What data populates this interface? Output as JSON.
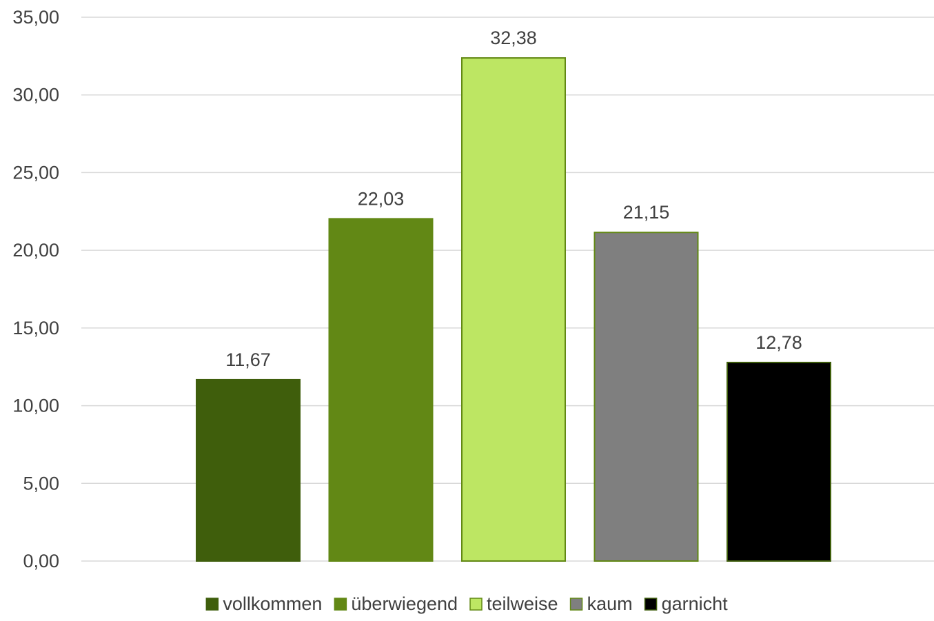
{
  "chart_data": {
    "type": "bar",
    "title": "",
    "xlabel": "",
    "ylabel": "",
    "categories": [
      "vollkommen",
      "überwiegend",
      "teilweise",
      "kaum",
      "garnicht"
    ],
    "values": [
      11.67,
      22.03,
      32.38,
      21.15,
      12.78
    ],
    "value_labels": [
      "11,67",
      "22,03",
      "32,38",
      "21,15",
      "12,78"
    ],
    "colors": [
      "#3f5e0c",
      "#628815",
      "#bde663",
      "#7f7f7f",
      "#000000"
    ],
    "border_colors": [
      "#3f5e0c",
      "#628815",
      "#628815",
      "#628815",
      "#3f5e0c"
    ],
    "ylim": [
      0,
      35
    ],
    "yticks": [
      0,
      5,
      10,
      15,
      20,
      25,
      30,
      35
    ],
    "ytick_labels": [
      "0,00",
      "5,00",
      "10,00",
      "15,00",
      "20,00",
      "25,00",
      "30,00",
      "35,00"
    ],
    "grid": true,
    "legend": {
      "position": "bottom",
      "entries": [
        "vollkommen",
        "überwiegend",
        "teilweise",
        "kaum",
        "garnicht"
      ]
    }
  }
}
